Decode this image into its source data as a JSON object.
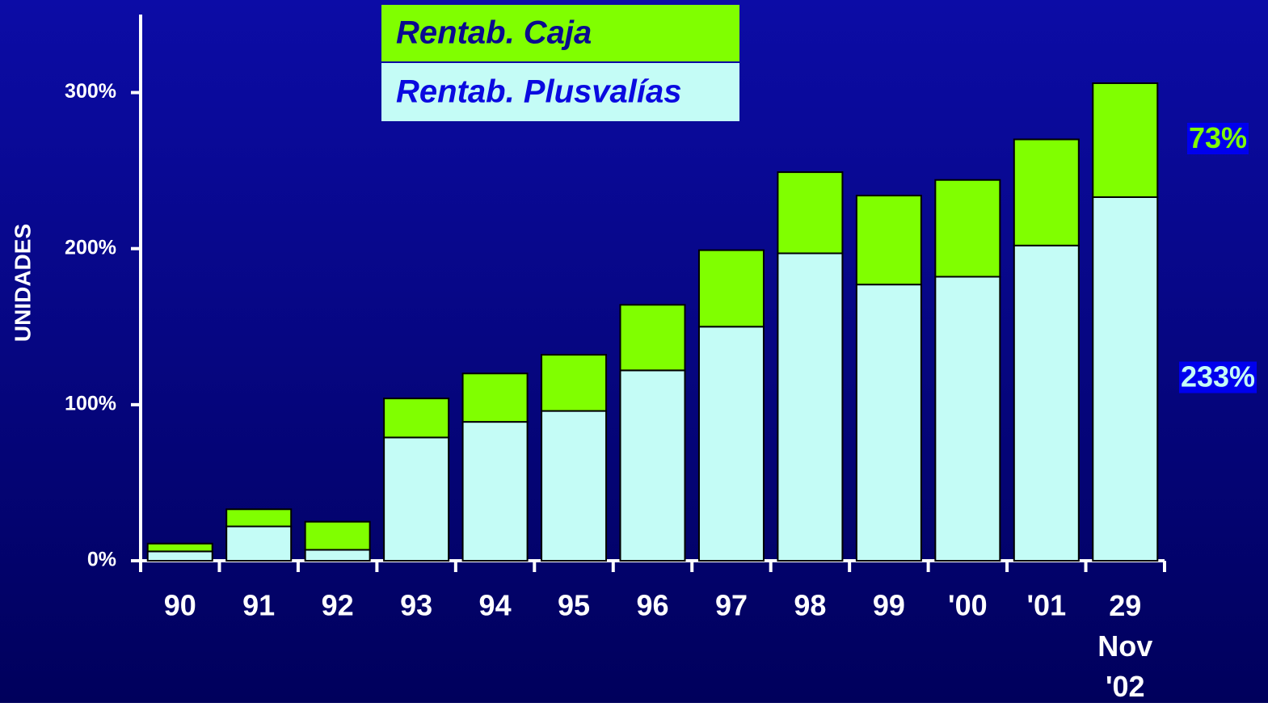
{
  "chart_data": {
    "type": "stacked_bar",
    "ylabel": "UNIDADES",
    "categories": [
      "90",
      "91",
      "92",
      "93",
      "94",
      "95",
      "96",
      "97",
      "98",
      "99",
      "'00",
      "'01",
      "29 Nov '02"
    ],
    "series": [
      {
        "name": "Rentab. Plusvalías",
        "color": "#c4fcf6",
        "text_color": "#0a0ae0",
        "values": [
          6,
          22,
          7,
          79,
          89,
          96,
          122,
          150,
          197,
          177,
          182,
          202,
          233
        ],
        "value_labels": [
          null,
          null,
          null,
          null,
          null,
          null,
          null,
          null,
          null,
          null,
          null,
          null,
          "233%"
        ]
      },
      {
        "name": "Rentab. Caja",
        "color": "#80ff00",
        "text_color": "#0a0a90",
        "values": [
          5,
          11,
          18,
          25,
          31,
          36,
          42,
          49,
          52,
          57,
          62,
          68,
          73
        ],
        "value_labels": [
          null,
          null,
          null,
          null,
          null,
          null,
          null,
          null,
          null,
          null,
          null,
          null,
          "73%"
        ]
      }
    ],
    "ylim": [
      0,
      350
    ],
    "yticks": [
      {
        "value": 0,
        "label": "0%"
      },
      {
        "value": 100,
        "label": "100%"
      },
      {
        "value": 200,
        "label": "200%"
      },
      {
        "value": 300,
        "label": "300%"
      }
    ]
  }
}
